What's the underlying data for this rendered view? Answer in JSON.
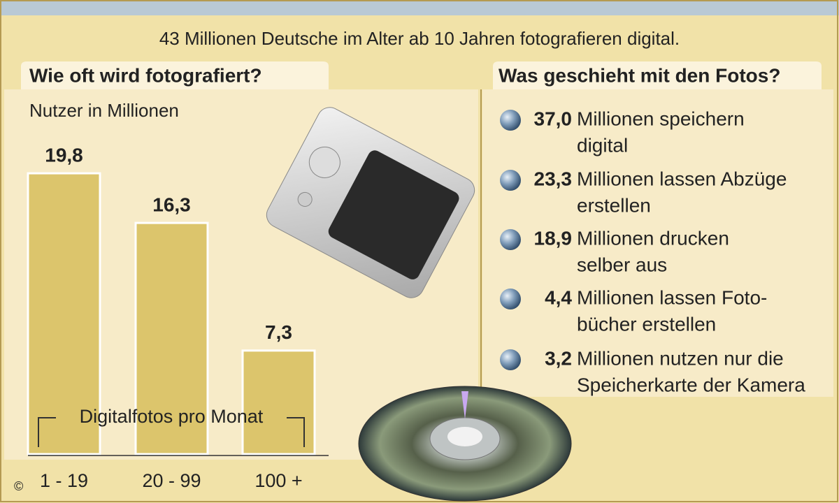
{
  "header": {
    "subtitle": "43 Millionen Deutsche im Alter ab 10 Jahren fotografieren digital."
  },
  "chart_data": {
    "type": "bar",
    "title": "Wie oft wird fotografiert?",
    "y_label": "Nutzer in Millionen",
    "x_label": "Digitalfotos pro Monat",
    "categories": [
      "1 - 19",
      "20 - 99",
      "100 +"
    ],
    "values": [
      19.8,
      16.3,
      7.3
    ],
    "value_labels": [
      "19,8",
      "16,3",
      "7,3"
    ],
    "color": "#dcc56c"
  },
  "list": {
    "title": "Was geschieht mit den Fotos?",
    "items": [
      {
        "value": 37.0,
        "value_label": "37,0",
        "lines": [
          "Millionen speichern",
          "digital"
        ]
      },
      {
        "value": 23.3,
        "value_label": "23,3",
        "lines": [
          "Millionen lassen Abzüge",
          "erstellen"
        ]
      },
      {
        "value": 18.9,
        "value_label": "18,9",
        "lines": [
          "Millionen drucken",
          "selber aus"
        ]
      },
      {
        "value": 4.4,
        "value_label": "4,4",
        "lines": [
          "Millionen lassen Foto-",
          "bücher erstellen"
        ]
      },
      {
        "value": 3.2,
        "value_label": "3,2",
        "lines": [
          "Millionen nutzen nur die",
          "Speicherkarte der Kamera"
        ]
      }
    ]
  },
  "footer": {
    "copyright": "©"
  }
}
